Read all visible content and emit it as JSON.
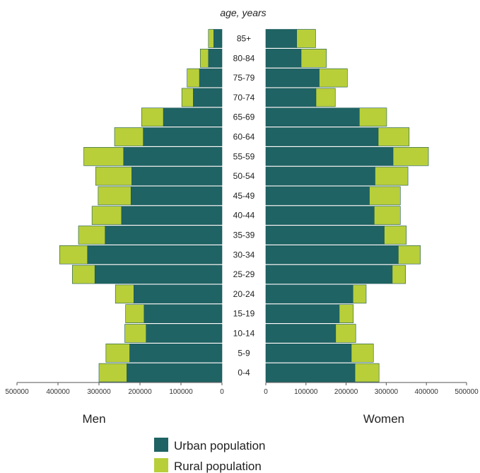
{
  "chart_data": {
    "type": "bar",
    "subtype": "population-pyramid",
    "title": "age, years",
    "categories": [
      "0-4",
      "5-9",
      "10-14",
      "15-19",
      "20-24",
      "25-29",
      "30-34",
      "35-39",
      "40-44",
      "45-49",
      "50-54",
      "55-59",
      "60-64",
      "65-69",
      "70-74",
      "75-79",
      "80-84",
      "85+"
    ],
    "men_label": "Men",
    "women_label": "Women",
    "series": [
      {
        "name": "Urban population",
        "color": "#1f6364",
        "men": [
          232000,
          225000,
          185000,
          190000,
          215000,
          310000,
          328000,
          285000,
          245000,
          222000,
          220000,
          240000,
          192000,
          143000,
          70000,
          55000,
          33000,
          20000
        ],
        "women": [
          222000,
          213000,
          174000,
          183000,
          217000,
          315000,
          330000,
          295000,
          270000,
          258000,
          272000,
          317000,
          280000,
          233000,
          125000,
          133000,
          88000,
          77000
        ]
      },
      {
        "name": "Rural population",
        "color": "#b8cf3a",
        "men": [
          68000,
          58000,
          52000,
          45000,
          45000,
          55000,
          68000,
          65000,
          72000,
          80000,
          88000,
          97000,
          70000,
          53000,
          28000,
          30000,
          20000,
          13000
        ],
        "women": [
          60000,
          55000,
          50000,
          35000,
          33000,
          33000,
          55000,
          55000,
          65000,
          77000,
          82000,
          88000,
          77000,
          68000,
          48000,
          70000,
          63000,
          47000
        ]
      }
    ],
    "x_ticks_men": [
      "500000",
      "400000",
      "300000",
      "200000",
      "100000",
      "0"
    ],
    "x_ticks_women": [
      "0",
      "100000",
      "200000",
      "300000",
      "400000",
      "500000"
    ],
    "xlim": [
      0,
      500000
    ],
    "legend": {
      "placement": "bottom-center",
      "items": [
        "Urban population",
        "Rural population"
      ]
    }
  }
}
